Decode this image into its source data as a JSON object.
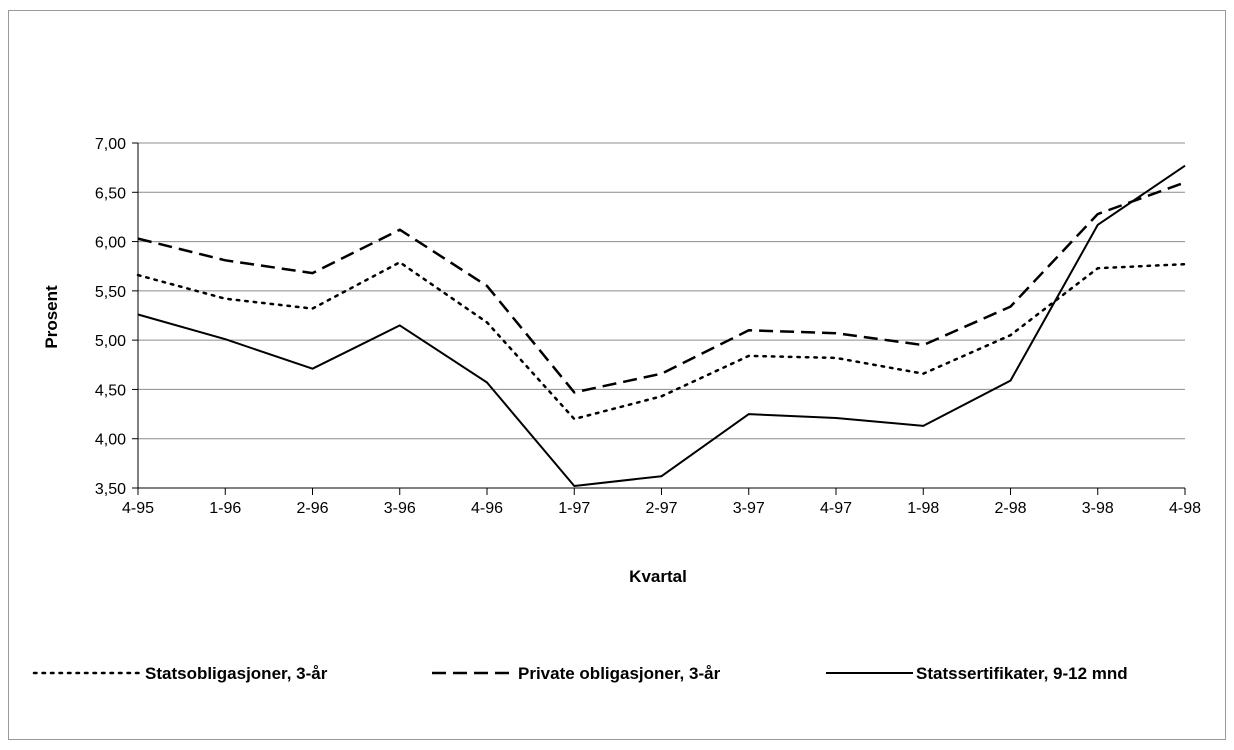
{
  "chart_data": {
    "type": "line",
    "title": "",
    "xlabel": "Kvartal",
    "ylabel": "Prosent",
    "categories": [
      "4-95",
      "1-96",
      "2-96",
      "3-96",
      "4-96",
      "1-97",
      "2-97",
      "3-97",
      "4-97",
      "1-98",
      "2-98",
      "3-98",
      "4-98"
    ],
    "ylim": [
      3.5,
      7.0
    ],
    "yticks": [
      "3,50",
      "4,00",
      "4,50",
      "5,00",
      "5,50",
      "6,00",
      "6,50",
      "7,00"
    ],
    "grid": "horizontal",
    "legend_position": "bottom",
    "series": [
      {
        "name": "Statsobligasjoner, 3-år",
        "style": "dotted",
        "values": [
          5.66,
          5.42,
          5.32,
          5.79,
          5.18,
          4.2,
          4.43,
          4.84,
          4.82,
          4.66,
          5.05,
          5.73,
          5.77
        ]
      },
      {
        "name": "Private obligasjoner, 3-år",
        "style": "dashed",
        "values": [
          6.03,
          5.81,
          5.68,
          6.12,
          5.55,
          4.47,
          4.66,
          5.1,
          5.07,
          4.95,
          5.34,
          6.28,
          6.6
        ]
      },
      {
        "name": "Statssertifikater, 9-12 mnd",
        "style": "solid",
        "values": [
          5.26,
          5.01,
          4.71,
          5.15,
          4.57,
          3.52,
          3.62,
          4.25,
          4.21,
          4.13,
          4.59,
          6.17,
          6.77
        ]
      }
    ]
  }
}
